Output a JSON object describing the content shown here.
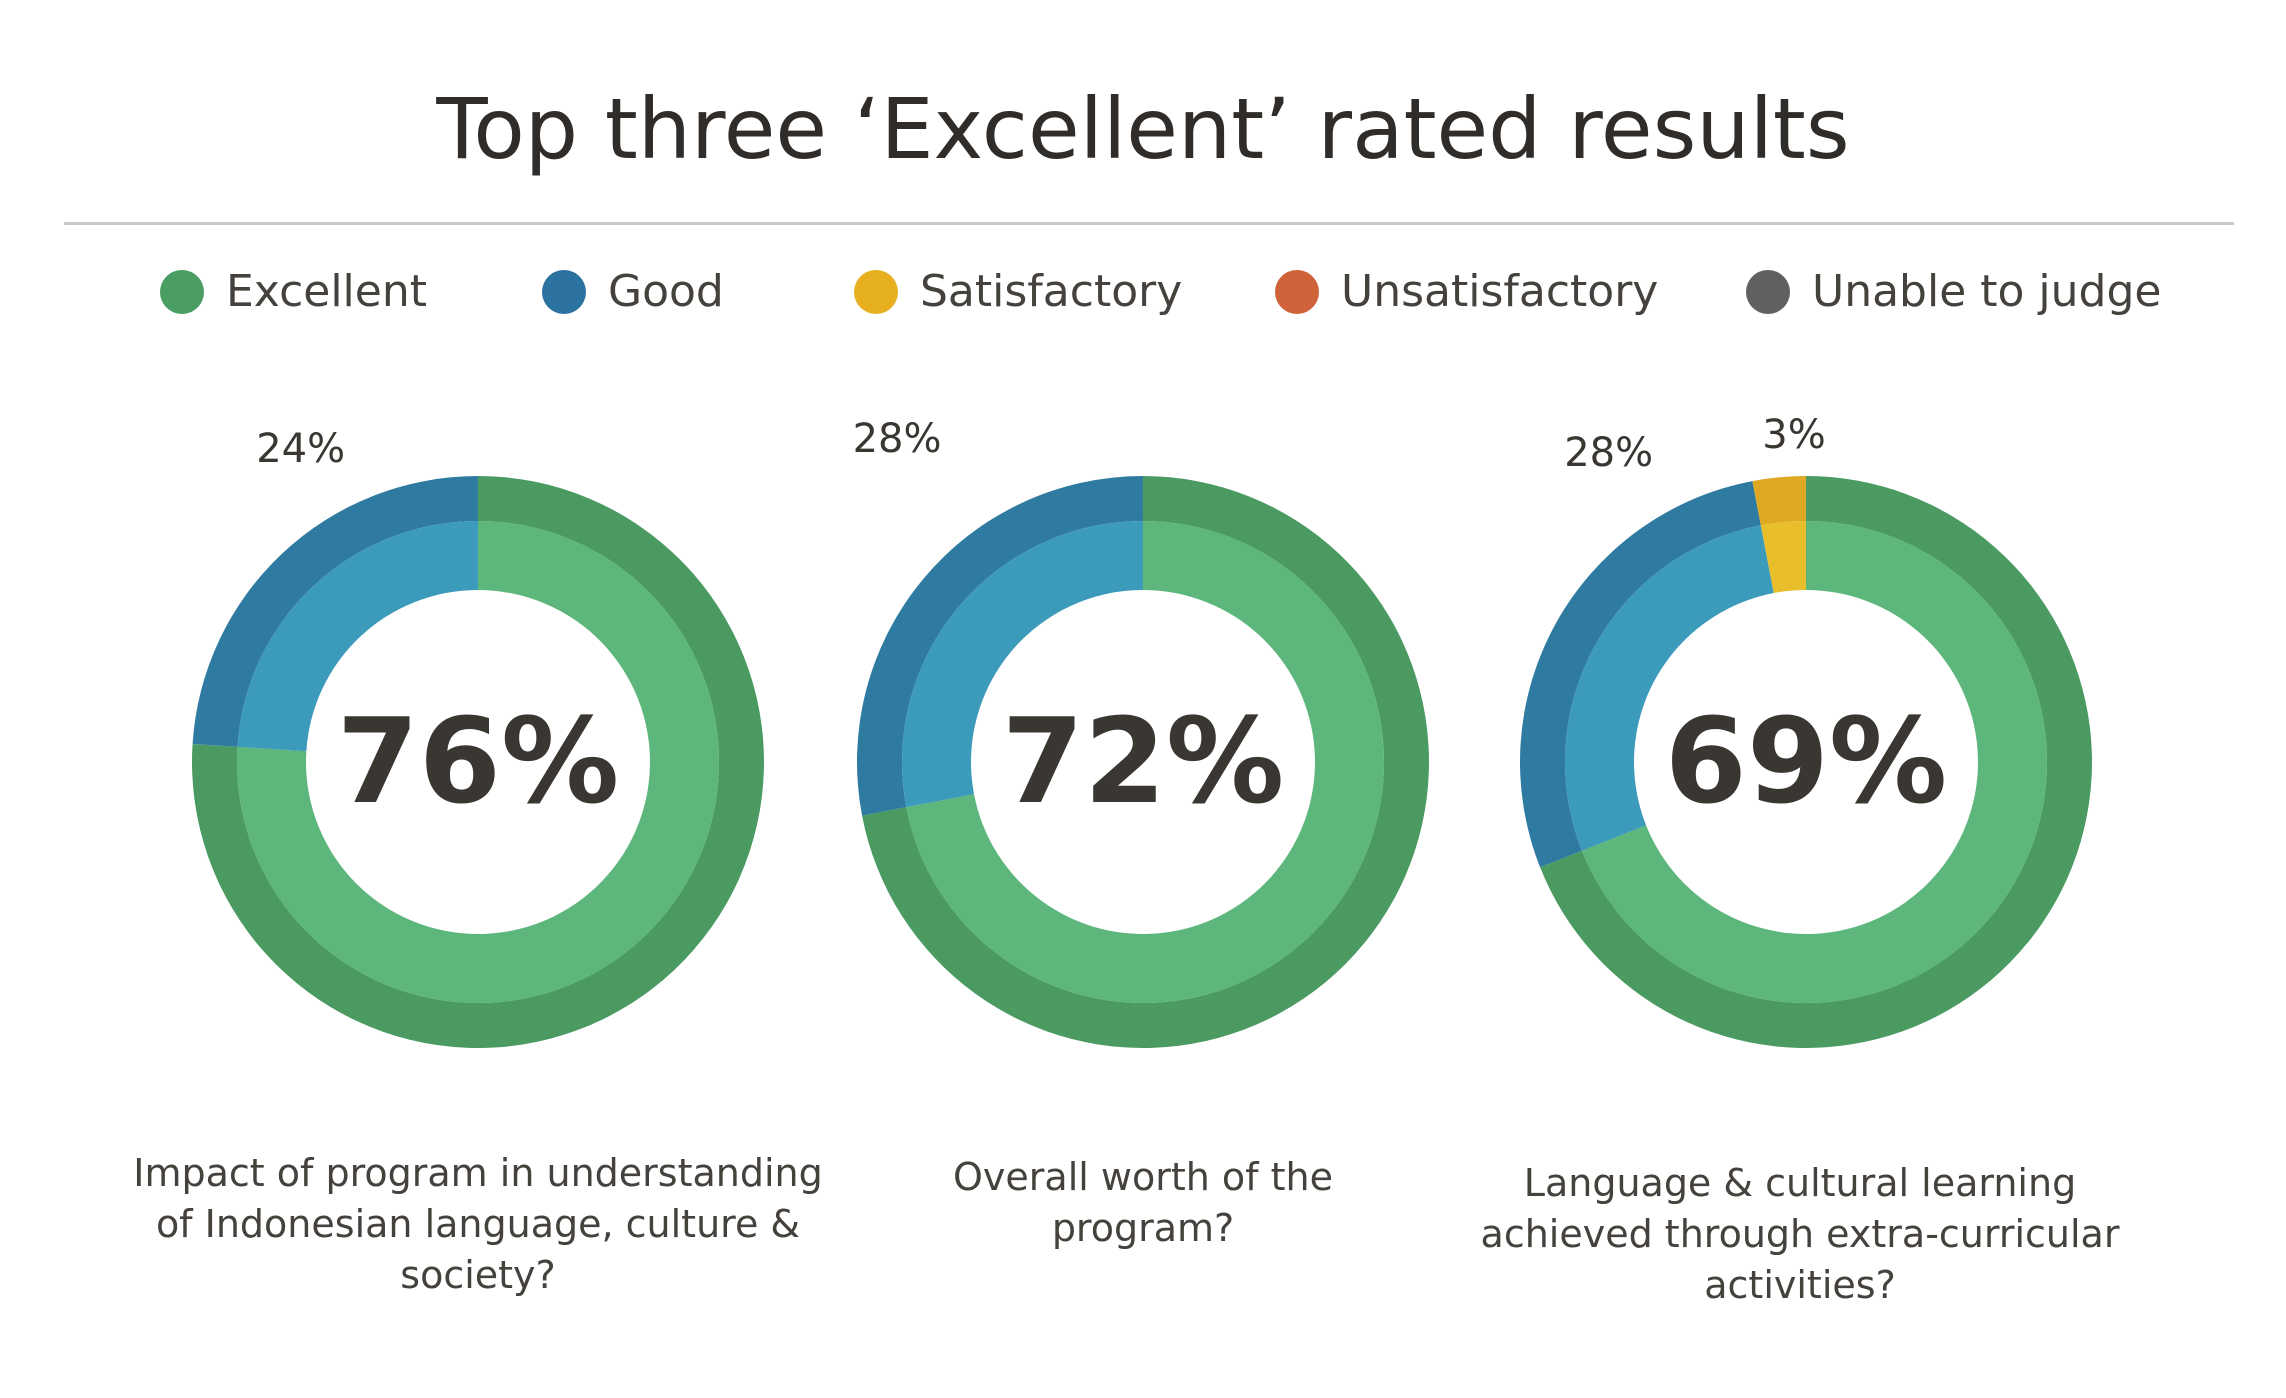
{
  "chart_data": {
    "type": "pie",
    "title": "Top three ‘Excellent’ rated results",
    "legend": {
      "placement": "top",
      "entries": [
        {
          "name": "Excellent",
          "color": "#4a9e63"
        },
        {
          "name": "Good",
          "color": "#2b72a0"
        },
        {
          "name": "Satisfactory",
          "color": "#e6b021"
        },
        {
          "name": "Unsatisfactory",
          "color": "#d0623a"
        },
        {
          "name": "Unable to judge",
          "color": "#606060"
        }
      ]
    },
    "colors": {
      "Excellent": {
        "outer": "#4a9a62",
        "inner": "#5db67c"
      },
      "Good": {
        "outer": "#2f7aa1",
        "inner": "#3c9aba"
      },
      "Satisfactory": {
        "outer": "#dfa823",
        "inner": "#e8be2a"
      }
    },
    "charts": [
      {
        "question": "Impact of program in understanding of Indonesian language, culture & society?",
        "center_label": "76%",
        "slices": [
          {
            "name": "Excellent",
            "value": 76
          },
          {
            "name": "Good",
            "value": 24,
            "label": "24%"
          }
        ]
      },
      {
        "question": "Overall worth of the program?",
        "center_label": "72%",
        "slices": [
          {
            "name": "Excellent",
            "value": 72
          },
          {
            "name": "Good",
            "value": 28,
            "label": "28%"
          }
        ]
      },
      {
        "question": "Language & cultural learning achieved through extra-curricular activities?",
        "center_label": "69%",
        "slices": [
          {
            "name": "Excellent",
            "value": 69
          },
          {
            "name": "Good",
            "value": 28,
            "label": "28%"
          },
          {
            "name": "Satisfactory",
            "value": 3,
            "label": "3%"
          }
        ]
      }
    ]
  }
}
